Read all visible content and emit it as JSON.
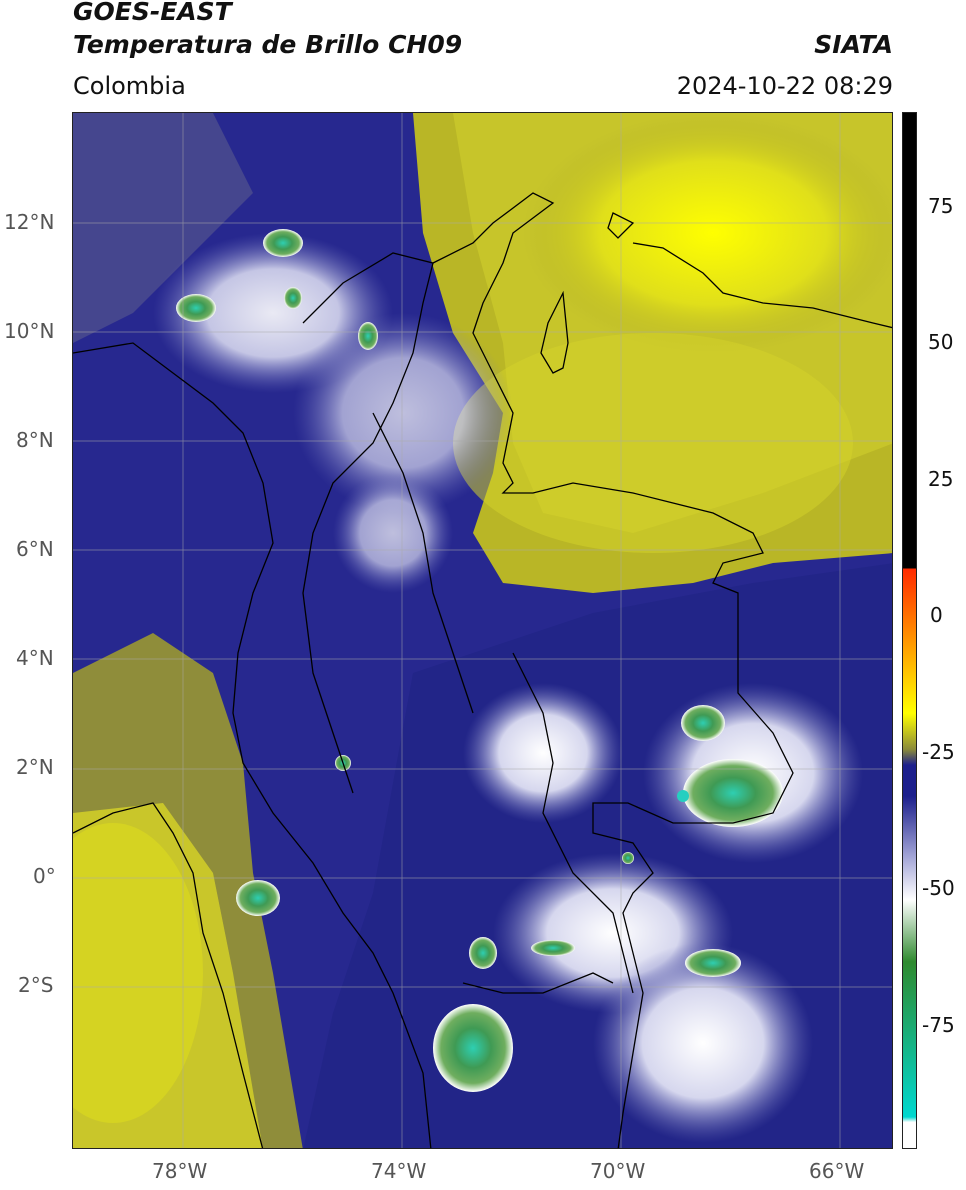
{
  "header": {
    "satellite": "GOES-EAST",
    "product": "Temperatura de Brillo CH09",
    "region": "Colombia",
    "agency": "SIATA",
    "datetime": "2024-10-22 08:29"
  },
  "map": {
    "lat_ticks": [
      "12°N",
      "10°N",
      "8°N",
      "6°N",
      "4°N",
      "2°N",
      "0°",
      "2°S"
    ],
    "lon_ticks": [
      "78°W",
      "74°W",
      "70°W",
      "66°W"
    ],
    "extent": {
      "lon_min": -80,
      "lon_max": -65,
      "lat_min": -5.2,
      "lat_max": 14
    }
  },
  "colorbar": {
    "ticks": [
      "75",
      "50",
      "25",
      "0",
      "-25",
      "-50",
      "-75"
    ],
    "colors": {
      "warm_black": "#000000",
      "red": "#ff2a00",
      "orange": "#ffa500",
      "yellow": "#ffff00",
      "olive": "#8a8a3a",
      "dark_blue": "#1c1f8c",
      "light_blue": "#a6a8d8",
      "white": "#ffffff",
      "green": "#2f8a2f",
      "teal": "#00d8d0"
    }
  }
}
